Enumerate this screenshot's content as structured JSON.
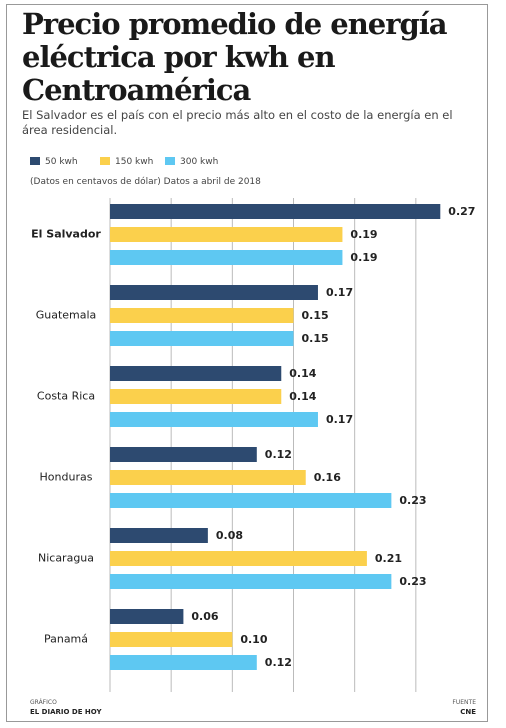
{
  "chart_data": {
    "type": "bar",
    "orientation": "horizontal",
    "title": "Precio promedio de energía eléctrica por kwh en Centroamérica",
    "subtitle": "El Salvador es el país con el precio más alto en el costo de la energía en el área residencial.",
    "note": "(Datos en centavos de dólar) Datos a abril de 2018",
    "credit_label": "GRÁFICO",
    "credit": "EL DIARIO DE HOY",
    "source_label": "FUENTE",
    "source": "CNE",
    "categories": [
      "El Salvador",
      "Guatemala",
      "Costa Rica",
      "Honduras",
      "Nicaragua",
      "Panamá"
    ],
    "series": [
      {
        "name": "50 kwh",
        "color": "#2d4a70",
        "values": [
          0.27,
          0.17,
          0.14,
          0.12,
          0.08,
          0.06
        ],
        "value_labels": [
          "0.27",
          "0.17",
          "0.14",
          "0.12",
          "0.08",
          "0.06"
        ]
      },
      {
        "name": "150 kwh",
        "color": "#fbd04c",
        "values": [
          0.19,
          0.15,
          0.14,
          0.16,
          0.21,
          0.1
        ],
        "value_labels": [
          "0.19",
          "0.15",
          "0.14",
          "0.16",
          "0.21",
          "0.10"
        ]
      },
      {
        "name": "300 kwh",
        "color": "#5ec8f2",
        "values": [
          0.19,
          0.15,
          0.17,
          0.23,
          0.23,
          0.12
        ],
        "value_labels": [
          "0.19",
          "0.15",
          "0.17",
          "0.23",
          "0.23",
          "0.12"
        ]
      }
    ],
    "xlim": [
      0,
      0.3
    ],
    "xticks": [
      0,
      0.05,
      0.1,
      0.15,
      0.2,
      0.25
    ],
    "grid": true
  }
}
